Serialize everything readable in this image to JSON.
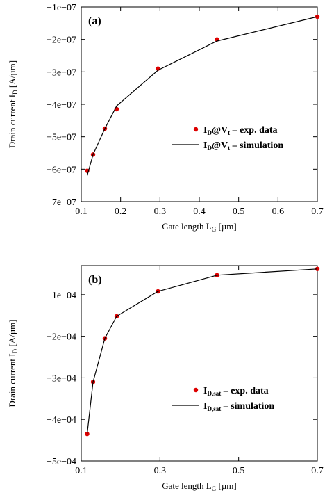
{
  "chart_data": [
    {
      "type": "line",
      "panel_label": "(a)",
      "xlabel": {
        "main": "Gate length L",
        "sub": "G",
        "unit": " [µm]"
      },
      "ylabel": {
        "main": "Drain current I",
        "sub": "D",
        "unit": " [A/µm]"
      },
      "xlim": [
        0.1,
        0.7
      ],
      "ylim": [
        -7e-07,
        -1e-07
      ],
      "xticks": [
        0.1,
        0.2,
        0.3,
        0.4,
        0.5,
        0.6,
        0.7
      ],
      "xtick_labels": [
        "0.1",
        "0.2",
        "0.3",
        "0.4",
        "0.5",
        "0.6",
        "0.7"
      ],
      "yticks": [
        -1e-07,
        -2e-07,
        -3e-07,
        -4e-07,
        -5e-07,
        -6e-07,
        -7e-07
      ],
      "ytick_labels": [
        "−1e−07",
        "−2e−07",
        "−3e−07",
        "−4e−07",
        "−5e−07",
        "−6e−07",
        "−7e−07"
      ],
      "legend_position": "center-right",
      "series": [
        {
          "name": "exp. data",
          "legend": {
            "pre": "I",
            "sub": "D",
            "post": "@V",
            "sub2": "t",
            "rest": " – exp. data"
          },
          "kind": "markers",
          "color": "#dd0000",
          "x": [
            0.115,
            0.13,
            0.16,
            0.19,
            0.295,
            0.445,
            0.7
          ],
          "y": [
            -6.05e-07,
            -5.55e-07,
            -4.75e-07,
            -4.15e-07,
            -2.9e-07,
            -2e-07,
            -1.3e-07
          ]
        },
        {
          "name": "simulation",
          "legend": {
            "pre": "I",
            "sub": "D",
            "post": "@V",
            "sub2": "t",
            "rest": " – simulation"
          },
          "kind": "line",
          "color": "#000000",
          "x": [
            0.115,
            0.13,
            0.16,
            0.19,
            0.295,
            0.445,
            0.7
          ],
          "y": [
            -6.2e-07,
            -5.55e-07,
            -4.75e-07,
            -4.05e-07,
            -2.95e-07,
            -2.05e-07,
            -1.3e-07
          ]
        }
      ]
    },
    {
      "type": "line",
      "panel_label": "(b)",
      "xlabel": {
        "main": "Gate length L",
        "sub": "G",
        "unit": " [µm]"
      },
      "ylabel": {
        "main": "Drain current I",
        "sub": "D",
        "unit": " [A/µm]"
      },
      "xlim": [
        0.1,
        0.7
      ],
      "ylim": [
        -0.0005,
        -3e-05
      ],
      "xticks": [
        0.1,
        0.3,
        0.5,
        0.7
      ],
      "xtick_labels": [
        "0.1",
        "0.3",
        "0.5",
        "0.7"
      ],
      "yticks": [
        -0.0001,
        -0.0002,
        -0.0003,
        -0.0004,
        -0.0005
      ],
      "ytick_labels": [
        "−1e−04",
        "−2e−04",
        "−3e−04",
        "−4e−04",
        "−5e−04"
      ],
      "legend_position": "center-right",
      "series": [
        {
          "name": "exp. data",
          "legend": {
            "pre": "I",
            "sub": "D,sat",
            "post": "",
            "sub2": "",
            "rest": " – exp. data"
          },
          "kind": "markers",
          "color": "#dd0000",
          "x": [
            0.115,
            0.13,
            0.16,
            0.19,
            0.295,
            0.445,
            0.7
          ],
          "y": [
            -0.000435,
            -0.00031,
            -0.000205,
            -0.000152,
            -9.2e-05,
            -5.3e-05,
            -3.8e-05
          ]
        },
        {
          "name": "simulation",
          "legend": {
            "pre": "I",
            "sub": "D,sat",
            "post": "",
            "sub2": "",
            "rest": " – simulation"
          },
          "kind": "line",
          "color": "#000000",
          "x": [
            0.115,
            0.13,
            0.16,
            0.19,
            0.295,
            0.445,
            0.7
          ],
          "y": [
            -0.000435,
            -0.00031,
            -0.000205,
            -0.000152,
            -9.2e-05,
            -5.3e-05,
            -3.8e-05
          ]
        }
      ]
    }
  ]
}
